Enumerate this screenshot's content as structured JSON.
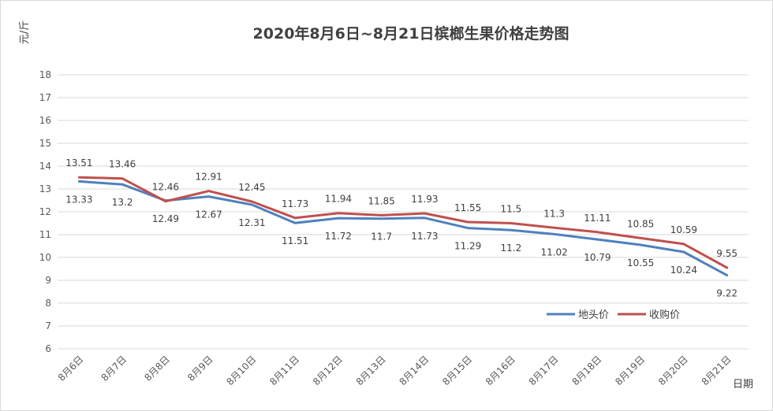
{
  "chart_data": {
    "type": "line",
    "title": "2020年8月6日~8月21日槟榔生果价格走势图",
    "ylabel": "元/斤",
    "xlabel": "日期",
    "ylim": [
      6,
      18
    ],
    "yticks": [
      6,
      7,
      8,
      9,
      10,
      11,
      12,
      13,
      14,
      15,
      16,
      17,
      18
    ],
    "grid": true,
    "legend_position": "lower-right",
    "categories": [
      "8月6日",
      "8月7日",
      "8月8日",
      "8月9日",
      "8月10日",
      "8月11日",
      "8月12日",
      "8月13日",
      "8月14日",
      "8月15日",
      "8月16日",
      "8月17日",
      "8月18日",
      "8月19日",
      "8月20日",
      "8月21日"
    ],
    "series": [
      {
        "name": "地头价",
        "color": "#4f81bd",
        "label_position": "below",
        "values": [
          13.33,
          13.2,
          12.49,
          12.67,
          12.31,
          11.51,
          11.72,
          11.7,
          11.73,
          11.29,
          11.2,
          11.02,
          10.79,
          10.55,
          10.24,
          9.22
        ]
      },
      {
        "name": "收购价",
        "color": "#c0504d",
        "label_position": "above",
        "values": [
          13.51,
          13.46,
          12.46,
          12.91,
          12.45,
          11.73,
          11.94,
          11.85,
          11.93,
          11.55,
          11.5,
          11.3,
          11.11,
          10.85,
          10.59,
          9.55
        ]
      }
    ]
  }
}
